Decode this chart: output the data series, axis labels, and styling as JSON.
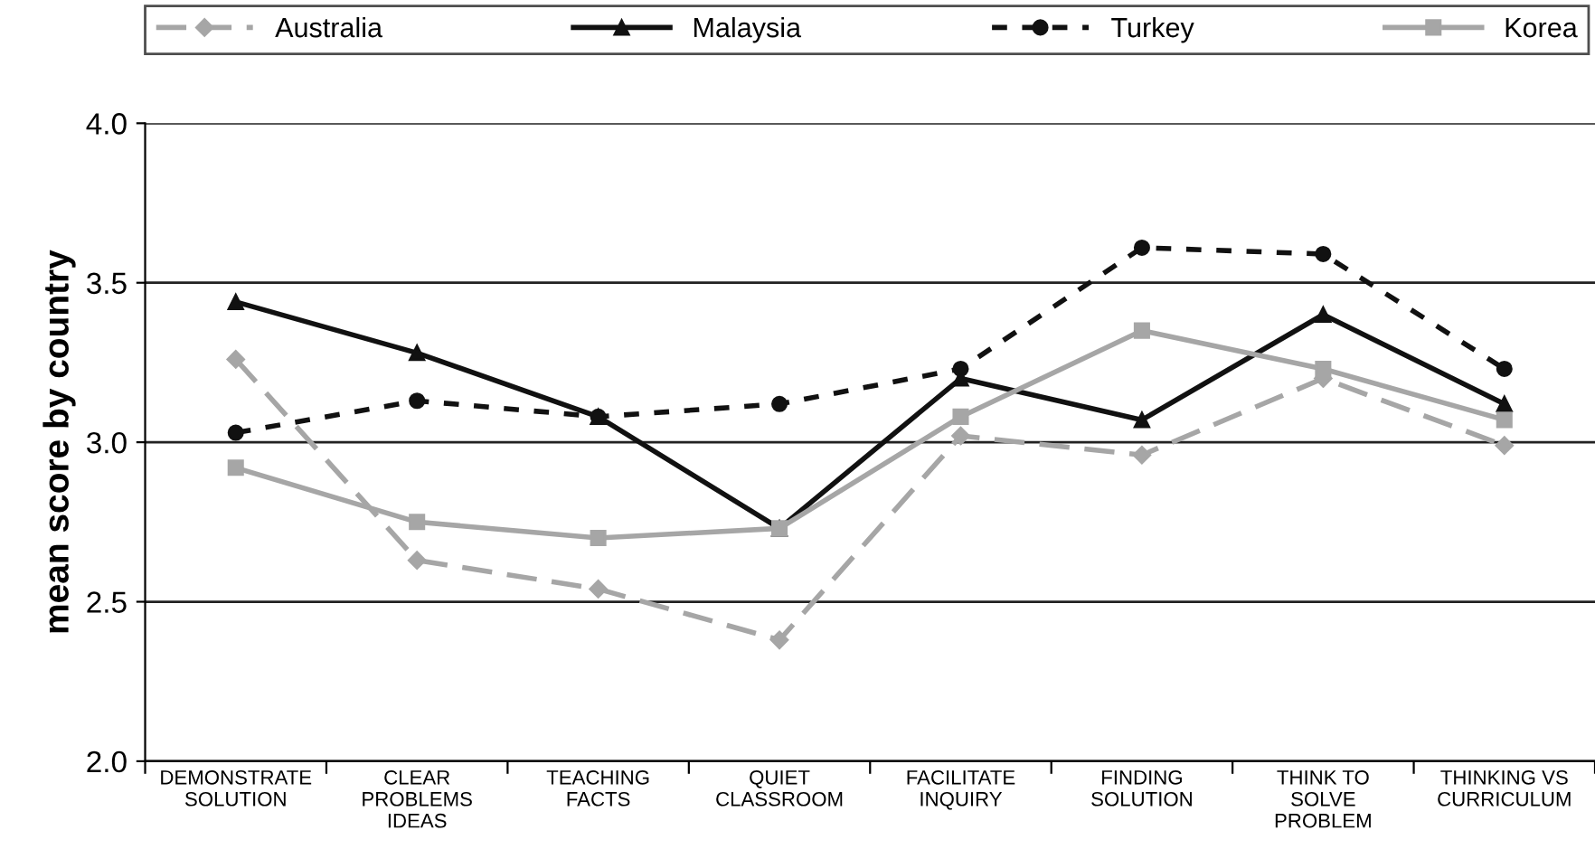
{
  "chart_data": {
    "type": "line",
    "ylabel": "mean score by country",
    "categories": [
      "DEMONSTRATE\nSOLUTION",
      "CLEAR\nPROBLEMS\nIDEAS",
      "TEACHING\nFACTS",
      "QUIET\nCLASSROOM",
      "FACILITATE\nINQUIRY",
      "FINDING\nSOLUTION",
      "THINK TO\nSOLVE\nPROBLEM",
      "THINKING VS\nCURRICULUM"
    ],
    "series": [
      {
        "name": "Australia",
        "color": "#a6a6a6",
        "marker": "diamond",
        "line_style": "dashed",
        "values": [
          3.26,
          2.63,
          2.54,
          2.38,
          3.02,
          2.96,
          3.2,
          2.99
        ]
      },
      {
        "name": "Malaysia",
        "color": "#111111",
        "marker": "triangle",
        "line_style": "solid",
        "values": [
          3.44,
          3.28,
          3.08,
          2.73,
          3.2,
          3.07,
          3.4,
          3.12
        ]
      },
      {
        "name": "Turkey",
        "color": "#111111",
        "marker": "circle",
        "line_style": "dotted",
        "values": [
          3.03,
          3.13,
          3.08,
          3.12,
          3.23,
          3.61,
          3.59,
          3.23
        ]
      },
      {
        "name": "Korea",
        "color": "#a6a6a6",
        "marker": "square",
        "line_style": "solid",
        "values": [
          2.92,
          2.75,
          2.7,
          2.73,
          3.08,
          3.35,
          3.23,
          3.07
        ]
      }
    ],
    "ylim": [
      2.0,
      4.0
    ],
    "yticks": [
      {
        "value": 2.0,
        "label": "2.0"
      },
      {
        "value": 2.5,
        "label": "2.5"
      },
      {
        "value": 3.0,
        "label": "3.0"
      },
      {
        "value": 3.5,
        "label": "3.5"
      },
      {
        "value": 4.0,
        "label": "4.0"
      }
    ],
    "grid": "y",
    "legend": "top"
  }
}
